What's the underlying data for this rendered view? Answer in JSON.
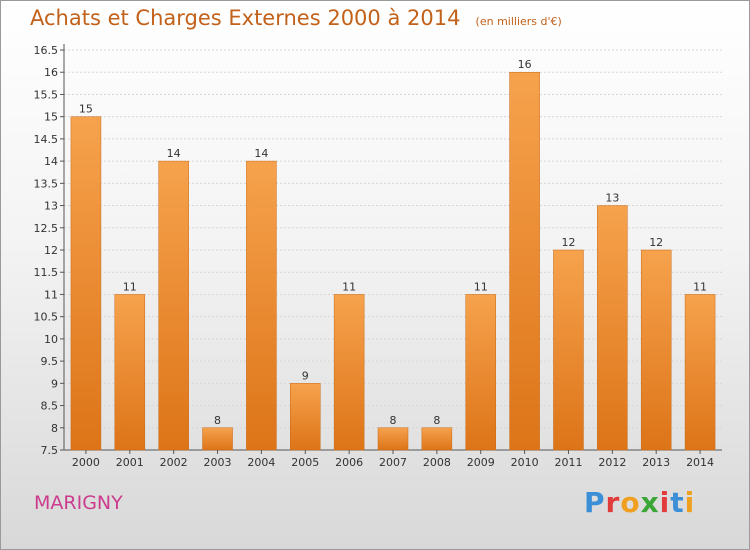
{
  "title": {
    "main": "Achats et Charges Externes 2000 à 2014",
    "unit": "(en milliers d'€)"
  },
  "commune": "MARIGNY",
  "logo": {
    "text": "Proxiti",
    "colors": [
      "#3b8fd6",
      "#e23b3b",
      "#f0a020",
      "#3aa635",
      "#e23b3b",
      "#3b8fd6",
      "#f0a020"
    ]
  },
  "colors": {
    "bar_light": "#f6a24d",
    "bar_dark": "#dd7418",
    "title": "#c2611a",
    "commune": "#cc3b8e"
  },
  "chart_data": {
    "type": "bar",
    "title": "Achats et Charges Externes 2000 à 2014",
    "categories": [
      "2000",
      "2001",
      "2002",
      "2003",
      "2004",
      "2005",
      "2006",
      "2007",
      "2008",
      "2009",
      "2010",
      "2011",
      "2012",
      "2013",
      "2014"
    ],
    "values": [
      15,
      11,
      14,
      8,
      14,
      9,
      11,
      8,
      8,
      11,
      16,
      12,
      13,
      12,
      11
    ],
    "ylim": [
      7.5,
      16.5
    ],
    "yticks": [
      "7.5",
      "8",
      "8.5",
      "9",
      "9.5",
      "10",
      "10.5",
      "11",
      "11.5",
      "12",
      "12.5",
      "13",
      "13.5",
      "14",
      "14.5",
      "15",
      "15.5",
      "16",
      "16.5"
    ],
    "grid": true
  }
}
